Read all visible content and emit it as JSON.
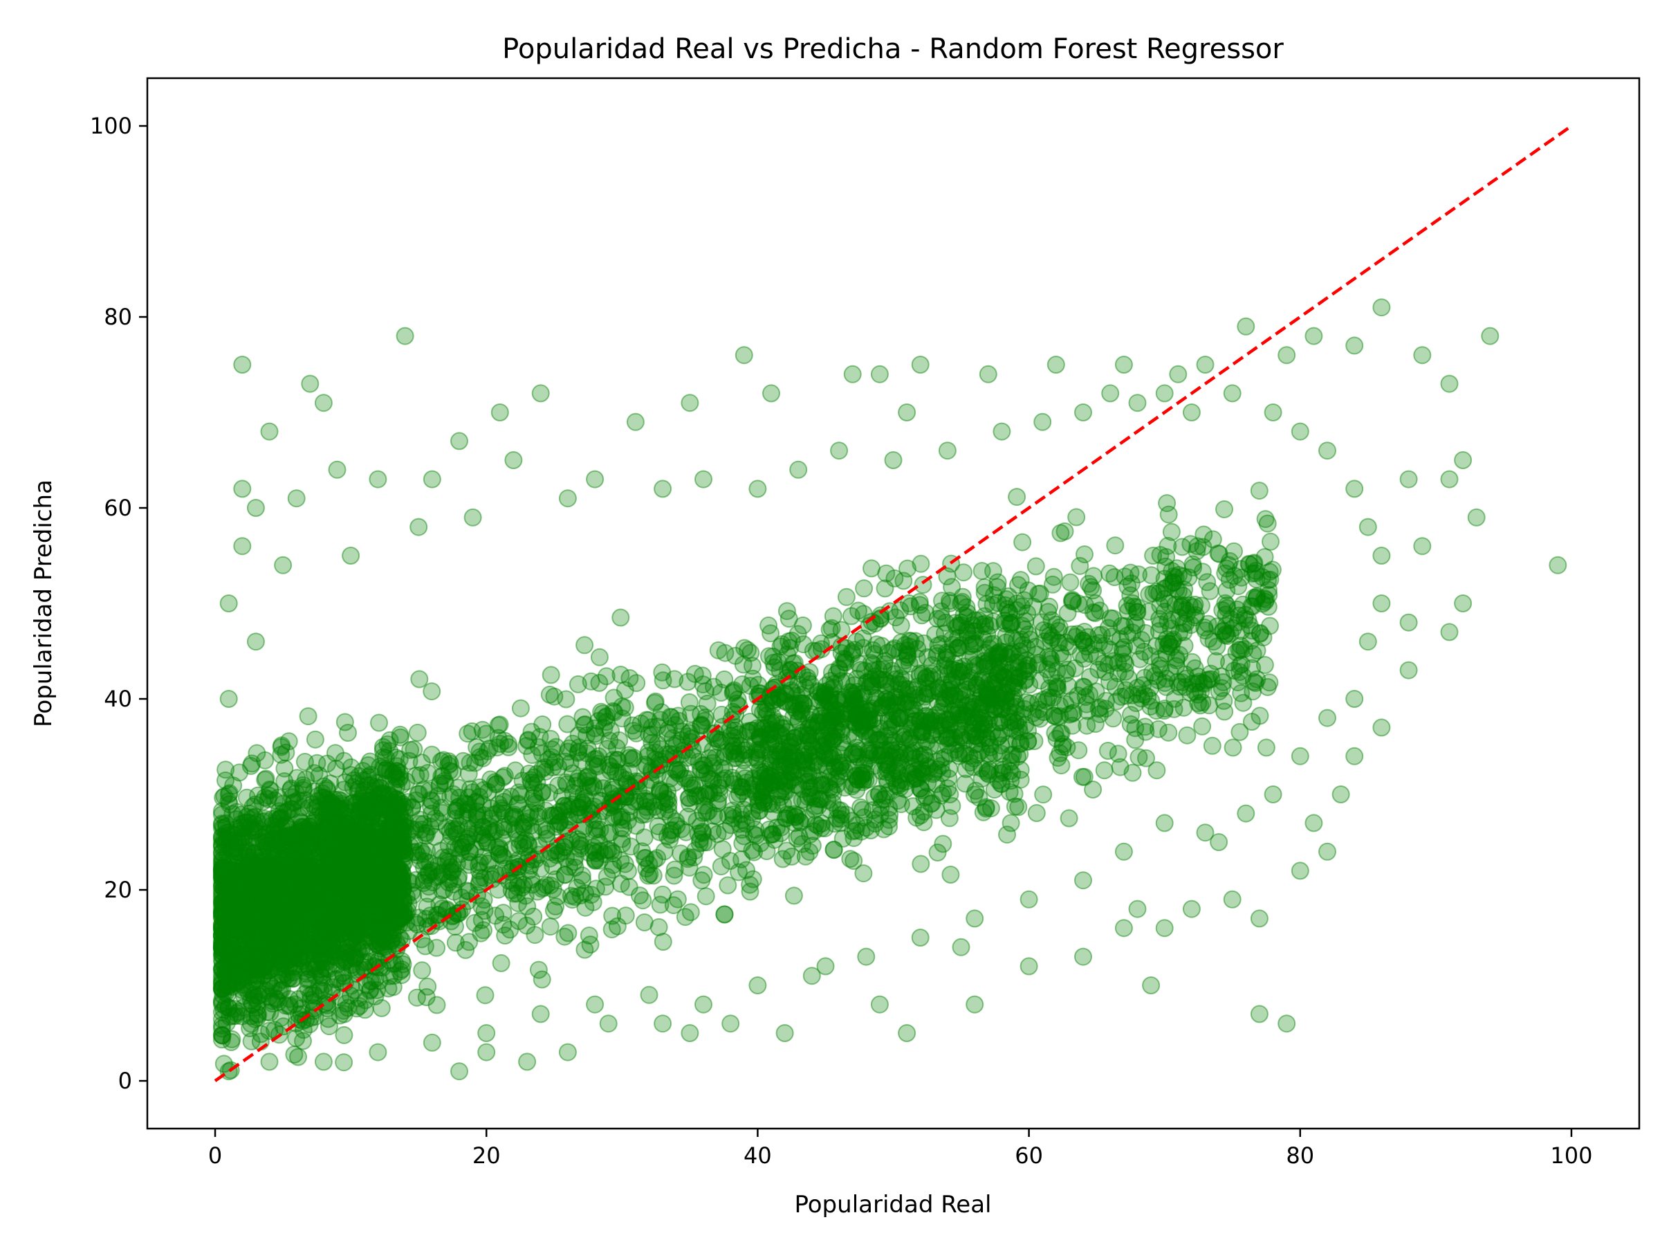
{
  "chart_data": {
    "type": "scatter",
    "title": "Popularidad Real vs Predicha - Random Forest Regressor",
    "xlabel": "Popularidad Real",
    "ylabel": "Popularidad Predicha",
    "xlim": [
      -5,
      105
    ],
    "ylim": [
      -5,
      105
    ],
    "xticks": [
      0,
      20,
      40,
      60,
      80,
      100
    ],
    "yticks": [
      0,
      20,
      40,
      60,
      80,
      100
    ],
    "grid": false,
    "marker_color": "#008000",
    "marker_alpha": 0.3,
    "reference_line": {
      "x": [
        0,
        100
      ],
      "y": [
        0,
        100
      ],
      "color": "#ff0000",
      "style": "dashed"
    },
    "points": [
      [
        2,
        75
      ],
      [
        7,
        73
      ],
      [
        8,
        71
      ],
      [
        14,
        78
      ],
      [
        4,
        68
      ],
      [
        18,
        67
      ],
      [
        21,
        70
      ],
      [
        24,
        72
      ],
      [
        31,
        69
      ],
      [
        35,
        71
      ],
      [
        39,
        76
      ],
      [
        41,
        72
      ],
      [
        47,
        74
      ],
      [
        49,
        74
      ],
      [
        51,
        70
      ],
      [
        52,
        75
      ],
      [
        57,
        74
      ],
      [
        62,
        75
      ],
      [
        67,
        75
      ],
      [
        71,
        74
      ],
      [
        73,
        75
      ],
      [
        76,
        79
      ],
      [
        79,
        76
      ],
      [
        81,
        78
      ],
      [
        84,
        77
      ],
      [
        86,
        81
      ],
      [
        89,
        76
      ],
      [
        91,
        73
      ],
      [
        94,
        78
      ],
      [
        99,
        54
      ],
      [
        93,
        59
      ],
      [
        92,
        65
      ],
      [
        91,
        63
      ],
      [
        92,
        50
      ],
      [
        91,
        47
      ],
      [
        89,
        56
      ],
      [
        88,
        63
      ],
      [
        88,
        48
      ],
      [
        88,
        43
      ],
      [
        86,
        37
      ],
      [
        84,
        34
      ],
      [
        83,
        30
      ],
      [
        82,
        24
      ],
      [
        81,
        27
      ],
      [
        80,
        22
      ],
      [
        79,
        6
      ],
      [
        77,
        7
      ],
      [
        77,
        17
      ],
      [
        75,
        19
      ],
      [
        74,
        25
      ],
      [
        72,
        18
      ],
      [
        70,
        16
      ],
      [
        69,
        10
      ],
      [
        68,
        18
      ],
      [
        67,
        16
      ],
      [
        56,
        8
      ],
      [
        51,
        5
      ],
      [
        49,
        8
      ],
      [
        42,
        5
      ],
      [
        38,
        6
      ],
      [
        35,
        5
      ],
      [
        29,
        6
      ],
      [
        23,
        2
      ],
      [
        18,
        1
      ],
      [
        20,
        3
      ],
      [
        26,
        3
      ],
      [
        33,
        6
      ],
      [
        45,
        12
      ],
      [
        55,
        14
      ],
      [
        60,
        12
      ],
      [
        64,
        13
      ],
      [
        2,
        62
      ],
      [
        3,
        60
      ],
      [
        6,
        61
      ],
      [
        9,
        64
      ],
      [
        12,
        63
      ],
      [
        16,
        63
      ],
      [
        22,
        65
      ],
      [
        26,
        61
      ],
      [
        28,
        63
      ],
      [
        33,
        62
      ],
      [
        36,
        63
      ],
      [
        40,
        62
      ],
      [
        43,
        64
      ],
      [
        46,
        66
      ],
      [
        50,
        65
      ],
      [
        54,
        66
      ],
      [
        58,
        68
      ],
      [
        61,
        69
      ],
      [
        64,
        70
      ],
      [
        66,
        72
      ],
      [
        68,
        71
      ],
      [
        70,
        72
      ],
      [
        72,
        70
      ],
      [
        75,
        72
      ],
      [
        78,
        70
      ],
      [
        80,
        68
      ],
      [
        82,
        66
      ],
      [
        84,
        62
      ],
      [
        85,
        58
      ],
      [
        86,
        55
      ],
      [
        86,
        50
      ],
      [
        85,
        46
      ],
      [
        84,
        40
      ],
      [
        82,
        38
      ],
      [
        80,
        34
      ],
      [
        78,
        30
      ],
      [
        76,
        28
      ],
      [
        73,
        26
      ],
      [
        70,
        27
      ],
      [
        67,
        24
      ],
      [
        64,
        21
      ],
      [
        60,
        19
      ],
      [
        56,
        17
      ],
      [
        52,
        15
      ],
      [
        48,
        13
      ],
      [
        44,
        11
      ],
      [
        40,
        10
      ],
      [
        36,
        8
      ],
      [
        32,
        9
      ],
      [
        28,
        8
      ],
      [
        24,
        7
      ],
      [
        20,
        5
      ],
      [
        16,
        4
      ],
      [
        12,
        3
      ],
      [
        8,
        2
      ],
      [
        4,
        2
      ],
      [
        1,
        1
      ],
      [
        1,
        10
      ],
      [
        1,
        20
      ],
      [
        1,
        30
      ],
      [
        1,
        40
      ],
      [
        1,
        50
      ],
      [
        2,
        56
      ],
      [
        3,
        46
      ],
      [
        5,
        54
      ],
      [
        10,
        55
      ],
      [
        15,
        58
      ],
      [
        19,
        59
      ]
    ]
  }
}
